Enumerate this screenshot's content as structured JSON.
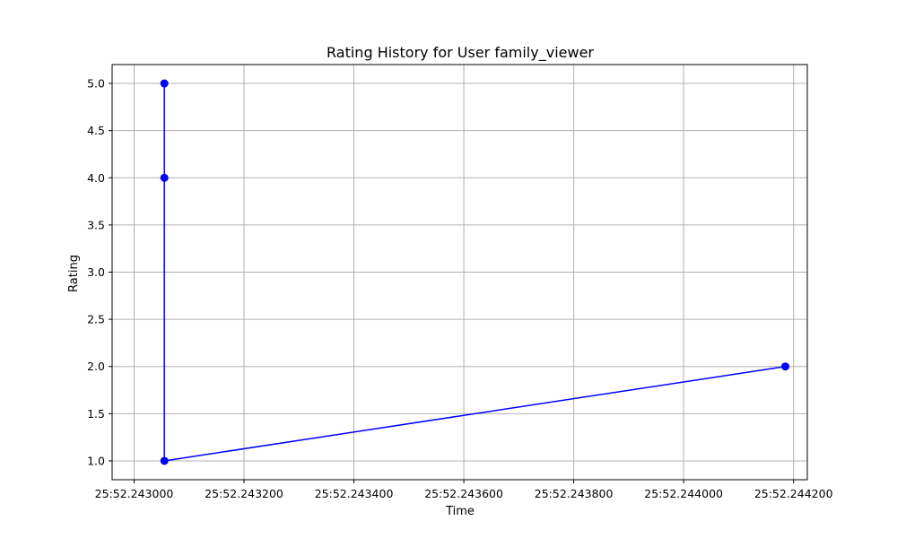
{
  "chart_data": {
    "type": "line",
    "title": "Rating History for User family_viewer",
    "xlabel": "Time",
    "ylabel": "Rating",
    "x_unit": "seconds (mm:ss.ffffff)",
    "xlim": [
      3952.24296,
      3952.244225
    ],
    "ylim": [
      0.8,
      5.2
    ],
    "xticks": [
      3952.243,
      3952.2432,
      3952.2434,
      3952.2436,
      3952.2438,
      3952.244,
      3952.2442
    ],
    "xtick_labels": [
      "25:52.243000",
      "25:52.243200",
      "25:52.243400",
      "25:52.243600",
      "25:52.243800",
      "25:52.244000",
      "25:52.244200"
    ],
    "yticks": [
      1.0,
      1.5,
      2.0,
      2.5,
      3.0,
      3.5,
      4.0,
      4.5,
      5.0
    ],
    "ytick_labels": [
      "1.0",
      "1.5",
      "2.0",
      "2.5",
      "3.0",
      "3.5",
      "4.0",
      "4.5",
      "5.0"
    ],
    "grid": true,
    "series": [
      {
        "color": "#0000ff",
        "marker": "circle",
        "points": [
          {
            "x": 3952.243055,
            "y": 5
          },
          {
            "x": 3952.243055,
            "y": 4
          },
          {
            "x": 3952.243055,
            "y": 1
          },
          {
            "x": 3952.244185,
            "y": 2
          }
        ]
      }
    ]
  }
}
